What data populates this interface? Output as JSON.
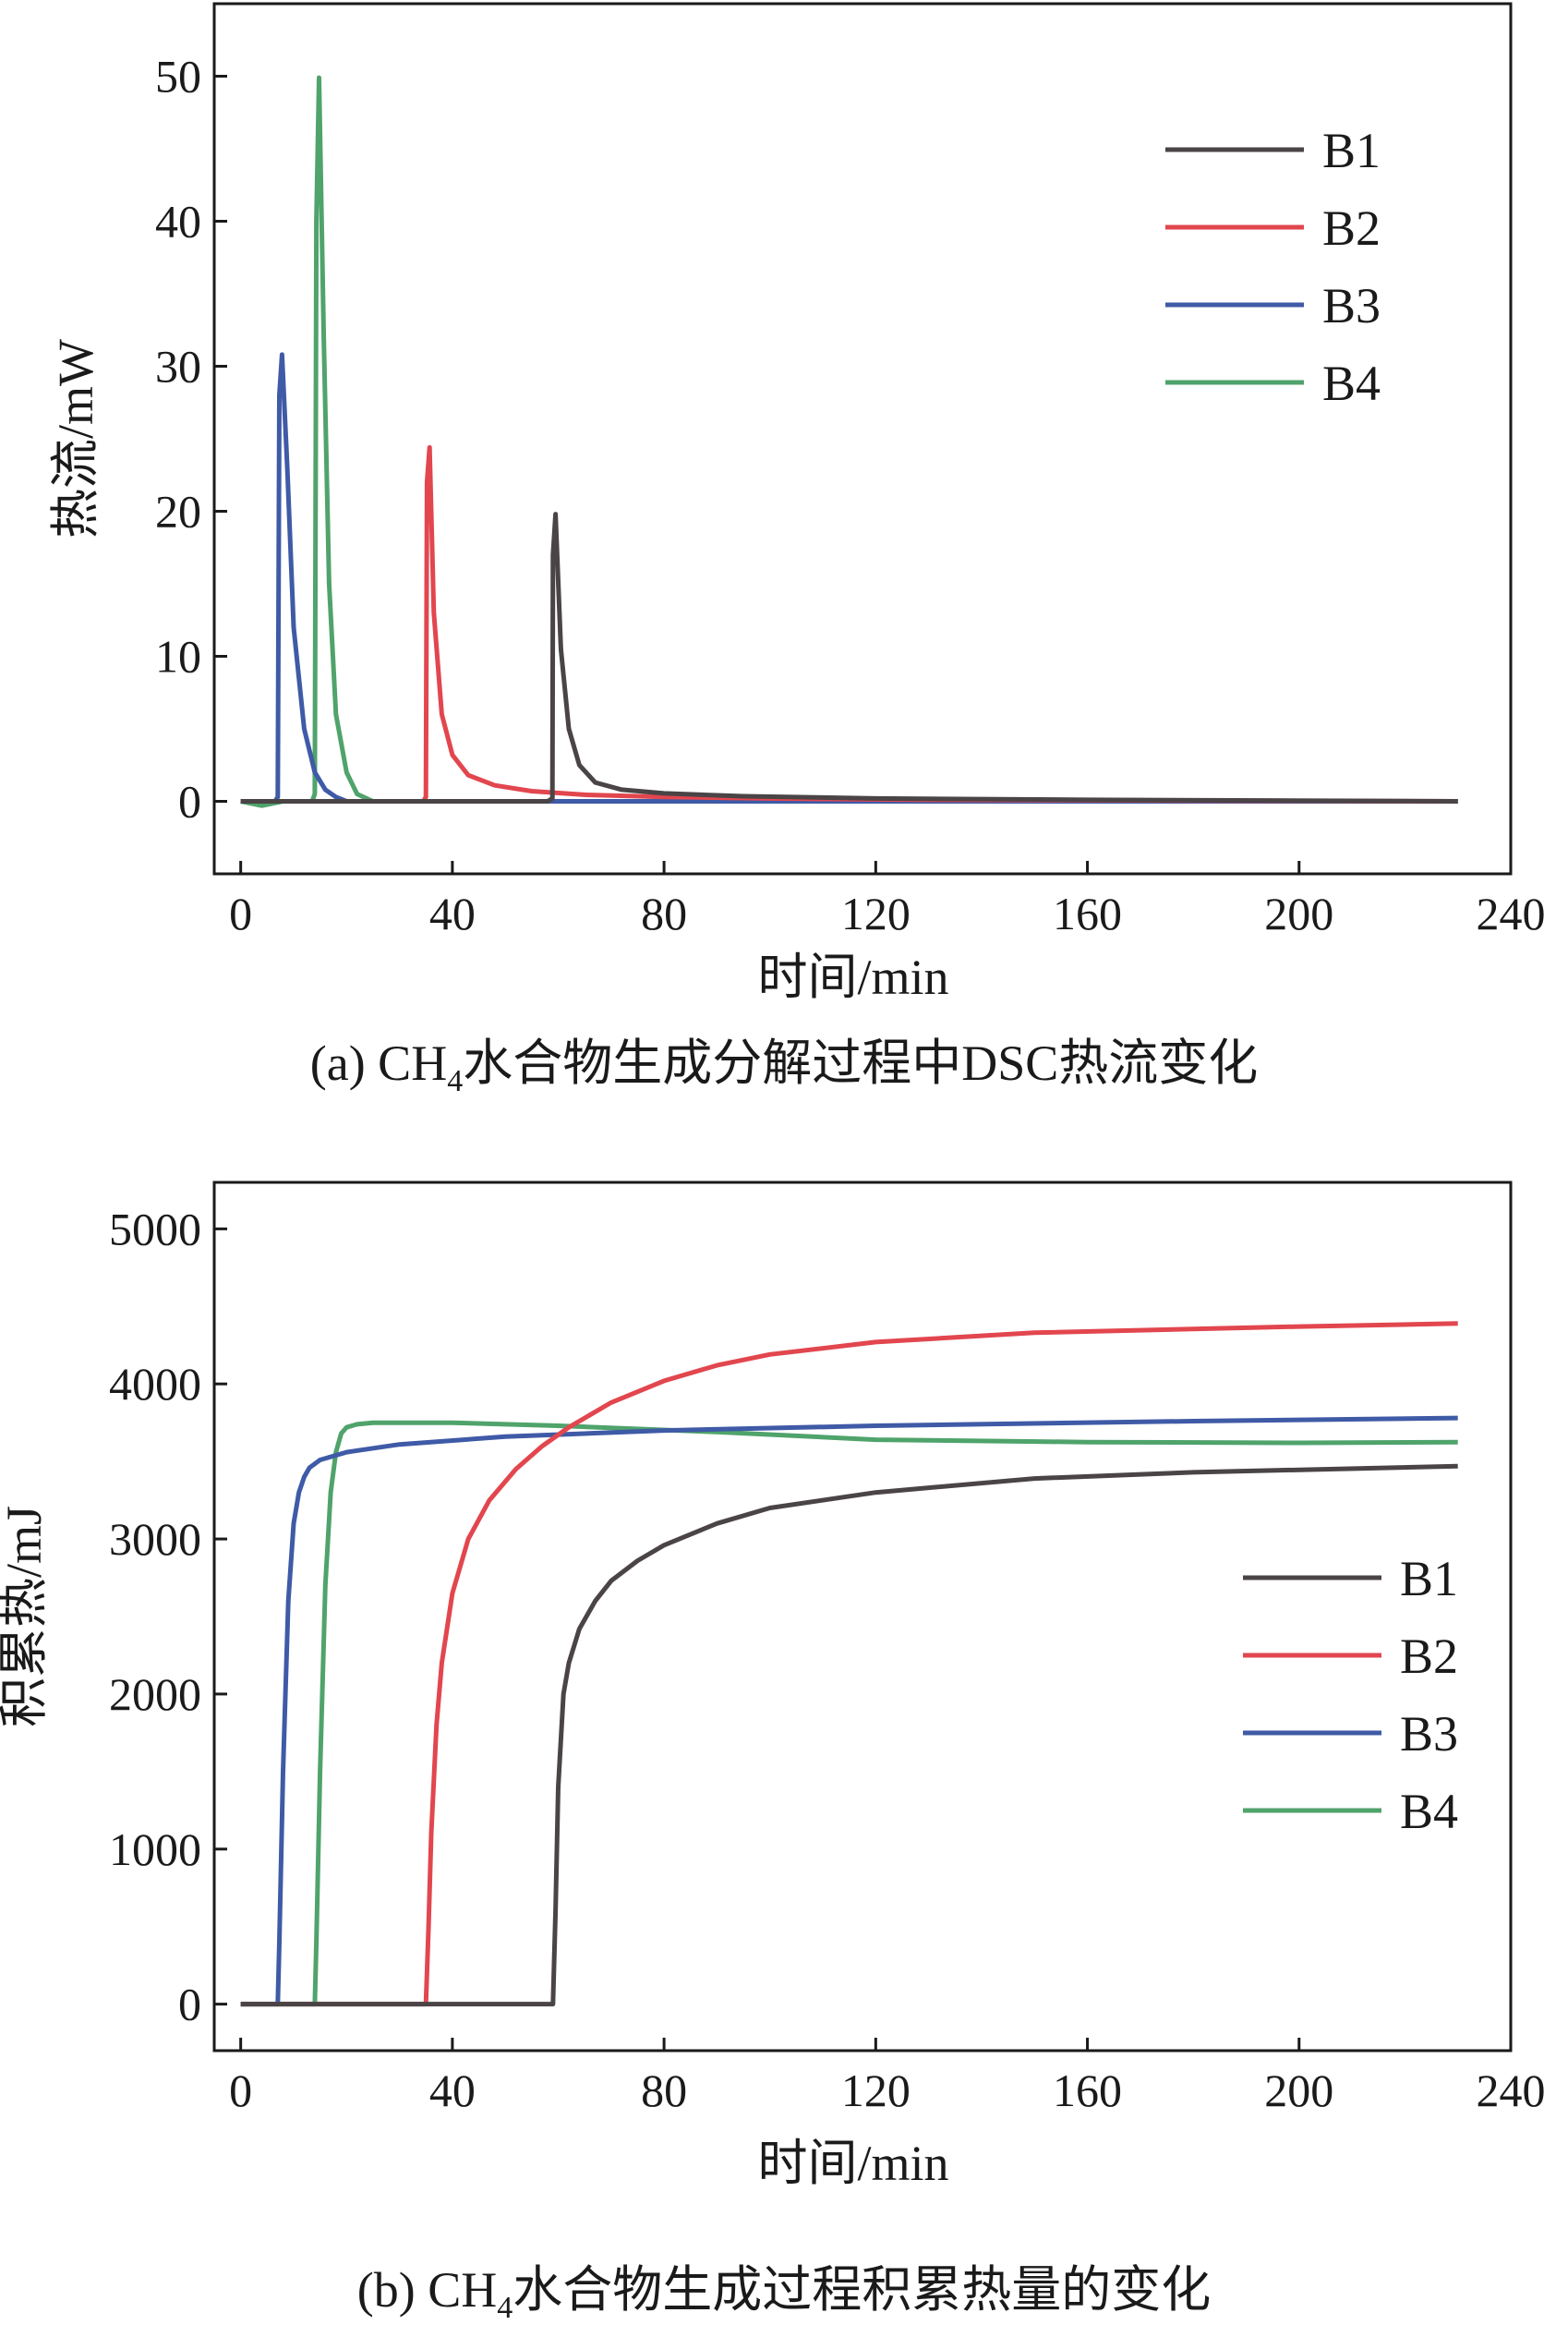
{
  "chart_data": [
    {
      "type": "line",
      "panel": "a",
      "caption": "(a) CH4水合物生成分解过程中DSC热流变化",
      "caption_prefix": "(a) CH",
      "caption_sub": "4",
      "caption_suffix": "水合物生成分解过程中DSC热流变化",
      "xlabel": "时间/min",
      "ylabel": "热流/mW",
      "xlim": [
        -5,
        240
      ],
      "ylim": [
        -5,
        55
      ],
      "xticks": [
        0,
        40,
        80,
        120,
        160,
        200,
        240
      ],
      "yticks": [
        0,
        10,
        20,
        30,
        40,
        50
      ],
      "legend_position": "top-right",
      "grid": false,
      "series": [
        {
          "name": "B1",
          "color": "#4a4446",
          "x": [
            0,
            58,
            58.9,
            59,
            59.5,
            60.5,
            62,
            64,
            67,
            72,
            80,
            95,
            120,
            160,
            230
          ],
          "y": [
            0,
            0,
            0.2,
            17.0,
            19.8,
            10.5,
            5.0,
            2.5,
            1.3,
            0.8,
            0.55,
            0.35,
            0.2,
            0.1,
            0
          ]
        },
        {
          "name": "B2",
          "color": "#e2464e",
          "x": [
            0,
            34.5,
            35,
            35.2,
            35.7,
            36.5,
            38,
            40,
            43,
            48,
            55,
            65,
            80,
            100,
            130,
            230
          ],
          "y": [
            0,
            0,
            0.3,
            22.0,
            24.4,
            13.0,
            6.0,
            3.2,
            1.8,
            1.1,
            0.7,
            0.45,
            0.3,
            0.2,
            0.1,
            0
          ]
        },
        {
          "name": "B3",
          "color": "#3f5aa6",
          "x": [
            0,
            6.5,
            7,
            7.3,
            7.8,
            8.8,
            10,
            12,
            14,
            16,
            18,
            20,
            230
          ],
          "y": [
            0,
            0,
            0.3,
            28.0,
            30.8,
            23.0,
            12.0,
            5.0,
            2.0,
            0.8,
            0.3,
            0,
            0
          ]
        },
        {
          "name": "B4",
          "color": "#4fa36b",
          "x": [
            0,
            4,
            8,
            13.5,
            14,
            14.3,
            14.8,
            15.7,
            16.7,
            18,
            20,
            22,
            25,
            230
          ],
          "y": [
            0,
            -0.3,
            0,
            0,
            0.5,
            40.0,
            49.9,
            32.0,
            15.0,
            6.0,
            2.0,
            0.5,
            0,
            0
          ]
        }
      ]
    },
    {
      "type": "line",
      "panel": "b",
      "caption": "(b) CH4水合物生成过程积累热量的变化",
      "caption_prefix": "(b) CH",
      "caption_sub": "4",
      "caption_suffix": "水合物生成过程积累热量的变化",
      "xlabel": "时间/min",
      "ylabel": "积累热/mJ",
      "xlim": [
        -5,
        240
      ],
      "ylim": [
        -300,
        5300
      ],
      "xticks": [
        0,
        40,
        80,
        120,
        160,
        200,
        240
      ],
      "yticks": [
        0,
        1000,
        2000,
        3000,
        4000,
        5000
      ],
      "legend_position": "center-right",
      "grid": false,
      "series": [
        {
          "name": "B1",
          "color": "#4a4446",
          "x": [
            0,
            59,
            59.5,
            60,
            61,
            62,
            64,
            67,
            70,
            75,
            80,
            90,
            100,
            120,
            150,
            180,
            230
          ],
          "y": [
            0,
            0,
            600,
            1400,
            2000,
            2200,
            2420,
            2600,
            2730,
            2860,
            2960,
            3100,
            3200,
            3300,
            3390,
            3430,
            3470
          ]
        },
        {
          "name": "B2",
          "color": "#e2464e",
          "x": [
            0,
            35,
            35.5,
            36,
            37,
            38,
            40,
            43,
            47,
            52,
            57,
            62,
            70,
            80,
            90,
            100,
            120,
            150,
            200,
            230
          ],
          "y": [
            0,
            0,
            500,
            1100,
            1800,
            2200,
            2650,
            3000,
            3250,
            3450,
            3600,
            3720,
            3880,
            4020,
            4120,
            4190,
            4270,
            4330,
            4370,
            4390
          ]
        },
        {
          "name": "B3",
          "color": "#3f5aa6",
          "x": [
            0,
            7,
            7.3,
            8,
            9,
            10,
            11,
            12,
            13,
            15,
            20,
            30,
            50,
            80,
            120,
            180,
            230
          ],
          "y": [
            0,
            0,
            400,
            1500,
            2600,
            3100,
            3300,
            3400,
            3460,
            3510,
            3560,
            3610,
            3660,
            3700,
            3730,
            3760,
            3780
          ]
        },
        {
          "name": "B4",
          "color": "#4fa36b",
          "x": [
            0,
            14,
            14.3,
            15,
            16,
            17,
            18,
            19,
            20,
            22,
            25,
            40,
            60,
            90,
            120,
            160,
            200,
            230
          ],
          "y": [
            0,
            0,
            400,
            1500,
            2700,
            3300,
            3560,
            3680,
            3720,
            3740,
            3750,
            3750,
            3730,
            3690,
            3640,
            3625,
            3620,
            3625
          ]
        }
      ]
    }
  ]
}
